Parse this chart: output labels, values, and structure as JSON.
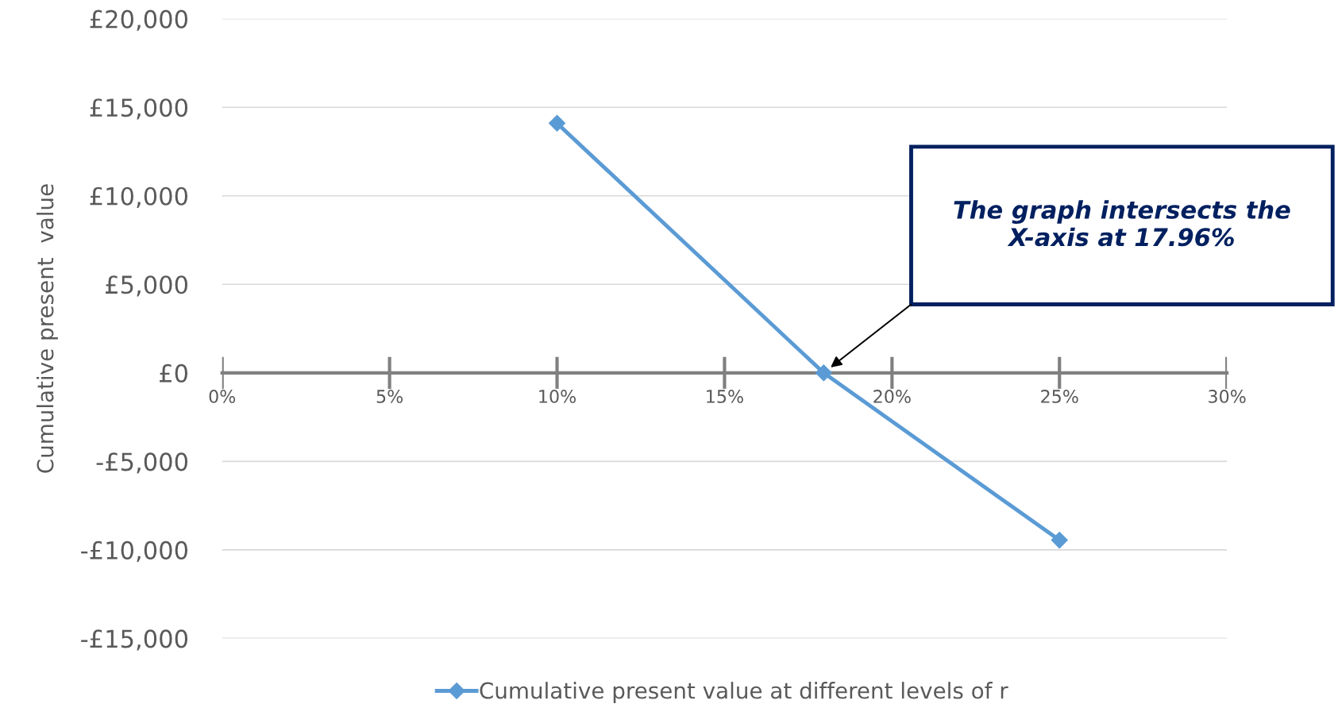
{
  "chart_data": {
    "type": "line",
    "ylabel": "Cumulative present  value",
    "x": [
      10,
      17.96,
      25
    ],
    "series": [
      {
        "name": "Cumulative present value at different levels of r",
        "color": "#5b9bd5",
        "values": [
          14100,
          0,
          -9450
        ]
      }
    ],
    "xlim": [
      0,
      30
    ],
    "xticks": [
      {
        "value": 0,
        "label": "0%"
      },
      {
        "value": 5,
        "label": "5%"
      },
      {
        "value": 10,
        "label": "10%"
      },
      {
        "value": 15,
        "label": "15%"
      },
      {
        "value": 20,
        "label": "20%"
      },
      {
        "value": 25,
        "label": "25%"
      },
      {
        "value": 30,
        "label": "30%"
      }
    ],
    "ylim": [
      -15000,
      20000
    ],
    "yticks": [
      {
        "value": -15000,
        "label": "-£15,000"
      },
      {
        "value": -10000,
        "label": "-£10,000"
      },
      {
        "value": -5000,
        "label": "-£5,000"
      },
      {
        "value": 0,
        "label": "£0"
      },
      {
        "value": 5000,
        "label": "£5,000"
      },
      {
        "value": 10000,
        "label": "£10,000"
      },
      {
        "value": 15000,
        "label": "£15,000"
      },
      {
        "value": 20000,
        "label": "£20,000"
      }
    ],
    "annotations": [
      "The graph intersects the\nX-axis at 17.96%"
    ],
    "grid": "y",
    "legend": "bottom",
    "marker": "diamond",
    "line_style": "solid"
  }
}
